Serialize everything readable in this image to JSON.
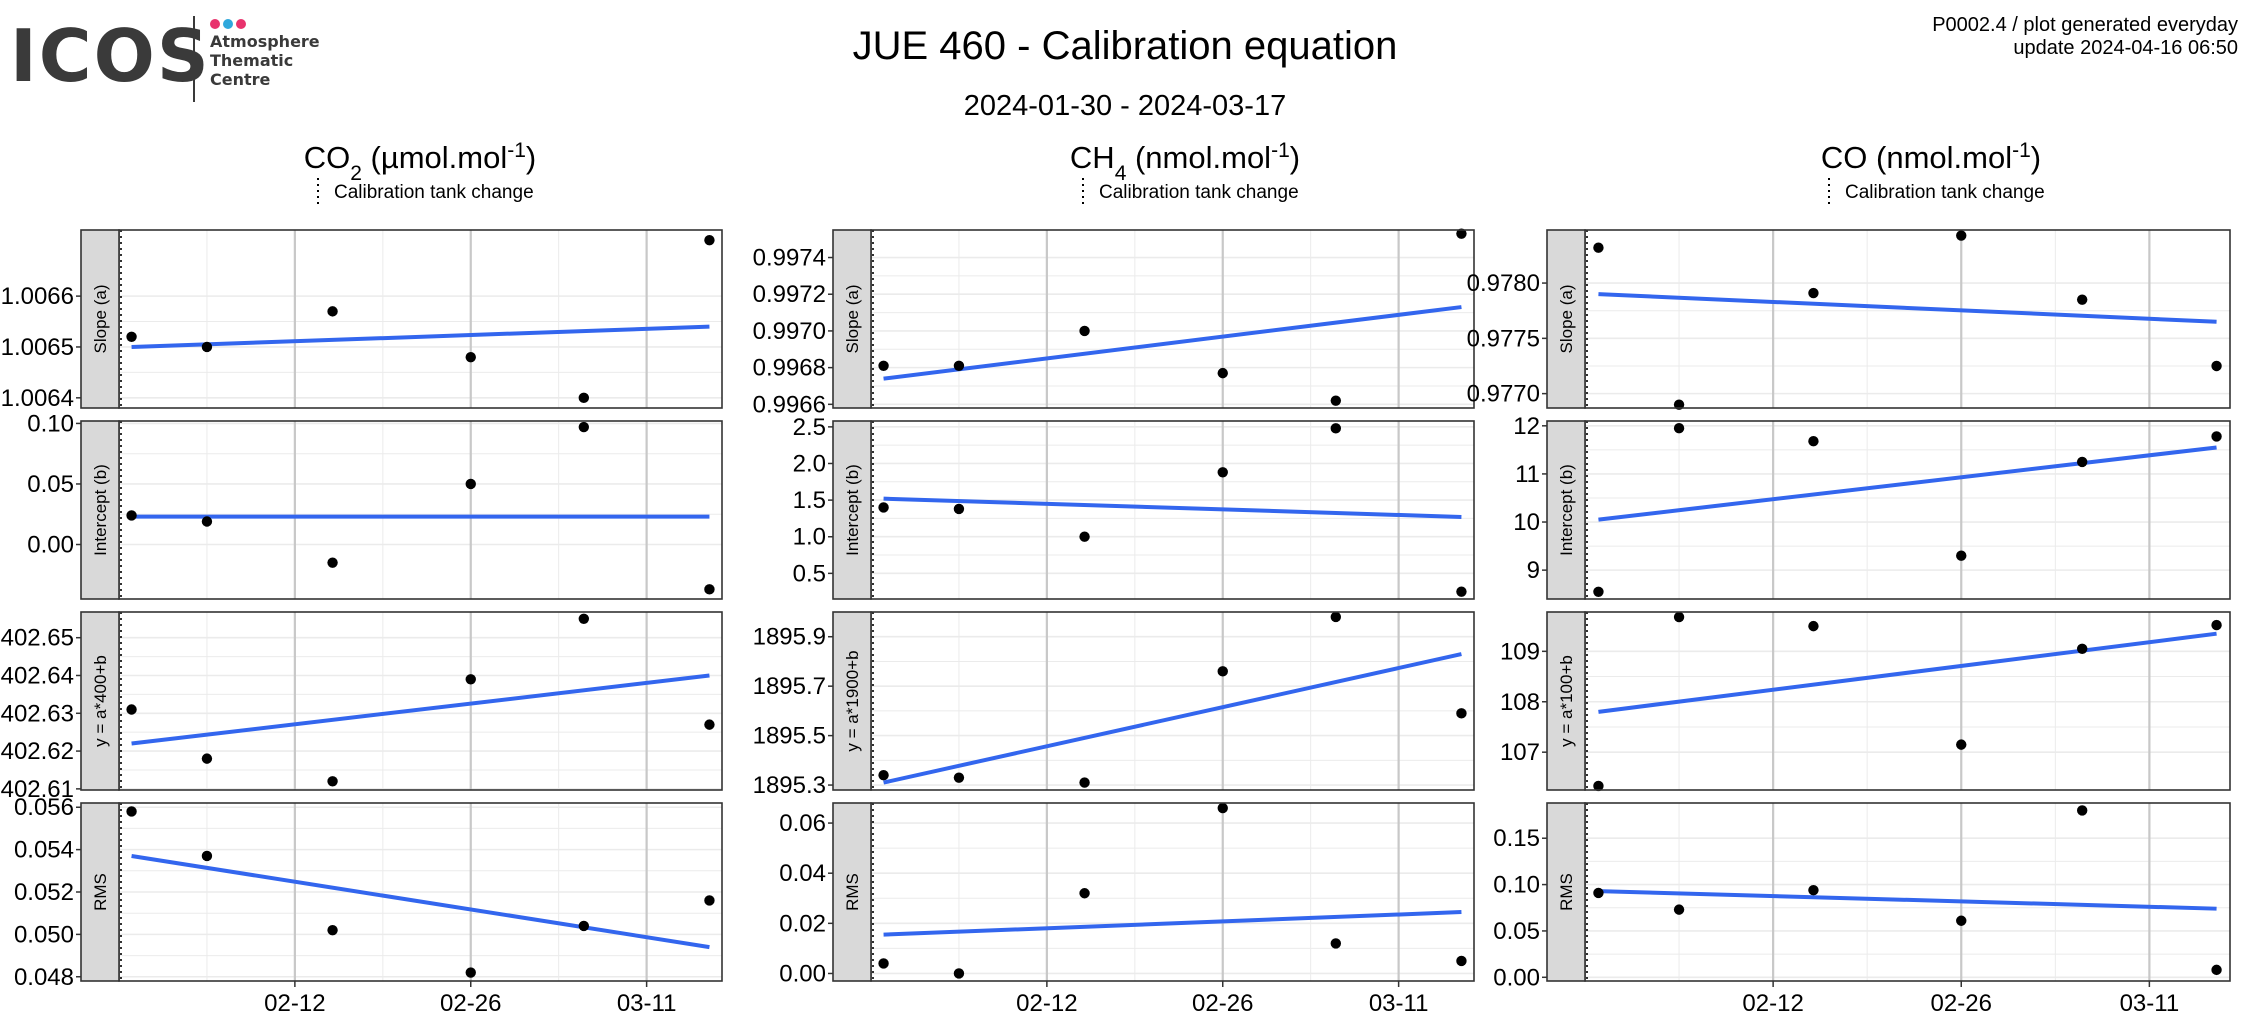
{
  "header": {
    "logo": {
      "text": "ICOS",
      "subtitle": [
        "Atmosphere",
        "Thematic",
        "Centre"
      ],
      "dot_colors": [
        "#e8336d",
        "#2fa8dc",
        "#e8336d"
      ]
    },
    "title": "JUE 460 - Calibration equation",
    "subtitle": "2024-01-30 - 2024-03-17",
    "top_right_line1": "P0002.4 / plot generated everyday",
    "top_right_line2": "update  2024-04-16 06:50"
  },
  "legend_label": "Calibration tank change",
  "colors": {
    "fit_line": "#3366ee",
    "points": "#000000",
    "strip": "#d9d9d9",
    "grid": "#ebebeb",
    "grid_major_x": "#c8c8c8"
  },
  "x_axis": {
    "ticks": [
      "2024-02-12",
      "2024-02-26",
      "2024-03-11"
    ],
    "tick_labels": [
      "02-12",
      "02-26",
      "03-11"
    ]
  },
  "chart_data": [
    {
      "type": "scatter",
      "gas": "CO",
      "gas_sub": "2",
      "unit": " (µmol.mol",
      "unit_sup": "-1",
      "panels": [
        {
          "strip": "Slope (a)",
          "ylim": [
            1.00638,
            1.00673
          ],
          "yticks": [
            1.0064,
            1.0065,
            1.0066
          ],
          "ytick_labels": [
            "1.0064",
            "1.0065",
            "1.0066"
          ],
          "points": [
            [
              "2024-01-30",
              1.00652
            ],
            [
              "2024-02-05",
              1.0065
            ],
            [
              "2024-02-15",
              1.00657
            ],
            [
              "2024-02-26",
              1.00648
            ],
            [
              "2024-03-06",
              1.0064
            ],
            [
              "2024-03-16",
              1.00671
            ]
          ],
          "fit": [
            [
              "2024-01-30",
              1.0065
            ],
            [
              "2024-03-16",
              1.00654
            ]
          ]
        },
        {
          "strip": "Intercept (b)",
          "ylim": [
            -0.045,
            0.102
          ],
          "yticks": [
            0.0,
            0.05,
            0.1
          ],
          "ytick_labels": [
            "0.00",
            "0.05",
            "0.10"
          ],
          "points": [
            [
              "2024-01-30",
              0.024
            ],
            [
              "2024-02-05",
              0.019
            ],
            [
              "2024-02-15",
              -0.015
            ],
            [
              "2024-02-26",
              0.05
            ],
            [
              "2024-03-06",
              0.097
            ],
            [
              "2024-03-16",
              -0.037
            ]
          ],
          "fit": [
            [
              "2024-01-30",
              0.023
            ],
            [
              "2024-03-16",
              0.023
            ]
          ]
        },
        {
          "strip": "y = a*400+b",
          "ylim": [
            402.6097,
            402.6568
          ],
          "yticks": [
            402.61,
            402.62,
            402.63,
            402.64,
            402.65
          ],
          "ytick_labels": [
            "402.61",
            "402.62",
            "402.63",
            "402.64",
            "402.65"
          ],
          "points": [
            [
              "2024-01-30",
              402.631
            ],
            [
              "2024-02-05",
              402.618
            ],
            [
              "2024-02-15",
              402.612
            ],
            [
              "2024-02-26",
              402.639
            ],
            [
              "2024-03-06",
              402.655
            ],
            [
              "2024-03-16",
              402.627
            ]
          ],
          "fit": [
            [
              "2024-01-30",
              402.622
            ],
            [
              "2024-03-16",
              402.64
            ]
          ]
        },
        {
          "strip": "RMS",
          "ylim": [
            0.0478,
            0.0562
          ],
          "yticks": [
            0.048,
            0.05,
            0.052,
            0.054,
            0.056
          ],
          "ytick_labels": [
            "0.048",
            "0.050",
            "0.052",
            "0.054",
            "0.056"
          ],
          "points": [
            [
              "2024-01-30",
              0.0558
            ],
            [
              "2024-02-05",
              0.0537
            ],
            [
              "2024-02-15",
              0.0502
            ],
            [
              "2024-02-26",
              0.0482
            ],
            [
              "2024-03-06",
              0.0504
            ],
            [
              "2024-03-16",
              0.0516
            ]
          ],
          "fit": [
            [
              "2024-01-30",
              0.0537
            ],
            [
              "2024-03-16",
              0.0494
            ]
          ]
        }
      ]
    },
    {
      "type": "scatter",
      "gas": "CH",
      "gas_sub": "4",
      "unit": " (nmol.mol",
      "unit_sup": "-1",
      "panels": [
        {
          "strip": "Slope (a)",
          "ylim": [
            0.99658,
            0.99755
          ],
          "yticks": [
            0.9966,
            0.9968,
            0.997,
            0.9972,
            0.9974
          ],
          "ytick_labels": [
            "0.9966",
            "0.9968",
            "0.9970",
            "0.9972",
            "0.9974"
          ],
          "points": [
            [
              "2024-01-30",
              0.99681
            ],
            [
              "2024-02-05",
              0.99681
            ],
            [
              "2024-02-15",
              0.997
            ],
            [
              "2024-02-26",
              0.99677
            ],
            [
              "2024-03-06",
              0.99662
            ],
            [
              "2024-03-16",
              0.99753
            ]
          ],
          "fit": [
            [
              "2024-01-30",
              0.99674
            ],
            [
              "2024-03-16",
              0.99713
            ]
          ]
        },
        {
          "strip": "Intercept (b)",
          "ylim": [
            0.15,
            2.58
          ],
          "yticks": [
            0.5,
            1.0,
            1.5,
            2.0,
            2.5
          ],
          "ytick_labels": [
            "0.5",
            "1.0",
            "1.5",
            "2.0",
            "2.5"
          ],
          "points": [
            [
              "2024-01-30",
              1.4
            ],
            [
              "2024-02-05",
              1.38
            ],
            [
              "2024-02-15",
              1.0
            ],
            [
              "2024-02-26",
              1.88
            ],
            [
              "2024-03-06",
              2.48
            ],
            [
              "2024-03-16",
              0.25
            ]
          ],
          "fit": [
            [
              "2024-01-30",
              1.52
            ],
            [
              "2024-03-16",
              1.27
            ]
          ]
        },
        {
          "strip": "y = a*1900+b",
          "ylim": [
            1895.28,
            1896.0
          ],
          "yticks": [
            1895.3,
            1895.5,
            1895.7,
            1895.9
          ],
          "ytick_labels": [
            "1895.3",
            "1895.5",
            "1895.7",
            "1895.9"
          ],
          "points": [
            [
              "2024-01-30",
              1895.34
            ],
            [
              "2024-02-05",
              1895.33
            ],
            [
              "2024-02-15",
              1895.31
            ],
            [
              "2024-02-26",
              1895.76
            ],
            [
              "2024-03-06",
              1895.98
            ],
            [
              "2024-03-16",
              1895.59
            ]
          ],
          "fit": [
            [
              "2024-01-30",
              1895.31
            ],
            [
              "2024-03-16",
              1895.83
            ]
          ]
        },
        {
          "strip": "RMS",
          "ylim": [
            -0.003,
            0.068
          ],
          "yticks": [
            0.0,
            0.02,
            0.04,
            0.06
          ],
          "ytick_labels": [
            "0.00",
            "0.02",
            "0.04",
            "0.06"
          ],
          "points": [
            [
              "2024-01-30",
              0.004
            ],
            [
              "2024-02-05",
              0.0
            ],
            [
              "2024-02-15",
              0.032
            ],
            [
              "2024-02-26",
              0.066
            ],
            [
              "2024-03-06",
              0.012
            ],
            [
              "2024-03-16",
              0.005
            ]
          ],
          "fit": [
            [
              "2024-01-30",
              0.0155
            ],
            [
              "2024-03-16",
              0.0245
            ]
          ]
        }
      ]
    },
    {
      "type": "scatter",
      "gas": "CO",
      "gas_sub": "",
      "unit": " (nmol.mol",
      "unit_sup": "-1",
      "panels": [
        {
          "strip": "Slope (a)",
          "ylim": [
            0.97687,
            0.97848
          ],
          "yticks": [
            0.977,
            0.9775,
            0.978
          ],
          "ytick_labels": [
            "0.9770",
            "0.9775",
            "0.9780"
          ],
          "points": [
            [
              "2024-01-30",
              0.97832
            ],
            [
              "2024-02-05",
              0.9769
            ],
            [
              "2024-02-15",
              0.97791
            ],
            [
              "2024-02-26",
              0.97843
            ],
            [
              "2024-03-06",
              0.97785
            ],
            [
              "2024-03-16",
              0.97725
            ]
          ],
          "fit": [
            [
              "2024-01-30",
              0.9779
            ],
            [
              "2024-03-16",
              0.97765
            ]
          ]
        },
        {
          "strip": "Intercept (b)",
          "ylim": [
            8.4,
            12.1
          ],
          "yticks": [
            9,
            10,
            11,
            12
          ],
          "ytick_labels": [
            "9",
            "10",
            "11",
            "12"
          ],
          "points": [
            [
              "2024-01-30",
              8.55
            ],
            [
              "2024-02-05",
              11.95
            ],
            [
              "2024-02-15",
              11.68
            ],
            [
              "2024-02-26",
              9.3
            ],
            [
              "2024-03-06",
              11.25
            ],
            [
              "2024-03-16",
              11.78
            ]
          ],
          "fit": [
            [
              "2024-01-30",
              10.05
            ],
            [
              "2024-03-16",
              11.55
            ]
          ]
        },
        {
          "strip": "y = a*100+b",
          "ylim": [
            106.25,
            109.78
          ],
          "yticks": [
            107,
            108,
            109
          ],
          "ytick_labels": [
            "107",
            "108",
            "109"
          ],
          "points": [
            [
              "2024-01-30",
              106.33
            ],
            [
              "2024-02-05",
              109.68
            ],
            [
              "2024-02-15",
              109.5
            ],
            [
              "2024-02-26",
              107.15
            ],
            [
              "2024-03-06",
              109.05
            ],
            [
              "2024-03-16",
              109.52
            ]
          ],
          "fit": [
            [
              "2024-01-30",
              107.8
            ],
            [
              "2024-03-16",
              109.35
            ]
          ]
        },
        {
          "strip": "RMS",
          "ylim": [
            -0.004,
            0.188
          ],
          "yticks": [
            0.0,
            0.05,
            0.1,
            0.15
          ],
          "ytick_labels": [
            "0.00",
            "0.05",
            "0.10",
            "0.15"
          ],
          "points": [
            [
              "2024-01-30",
              0.091
            ],
            [
              "2024-02-05",
              0.073
            ],
            [
              "2024-02-15",
              0.094
            ],
            [
              "2024-02-26",
              0.061
            ],
            [
              "2024-03-06",
              0.18
            ],
            [
              "2024-03-16",
              0.008
            ]
          ],
          "fit": [
            [
              "2024-01-30",
              0.093
            ],
            [
              "2024-03-16",
              0.074
            ]
          ]
        }
      ]
    }
  ]
}
